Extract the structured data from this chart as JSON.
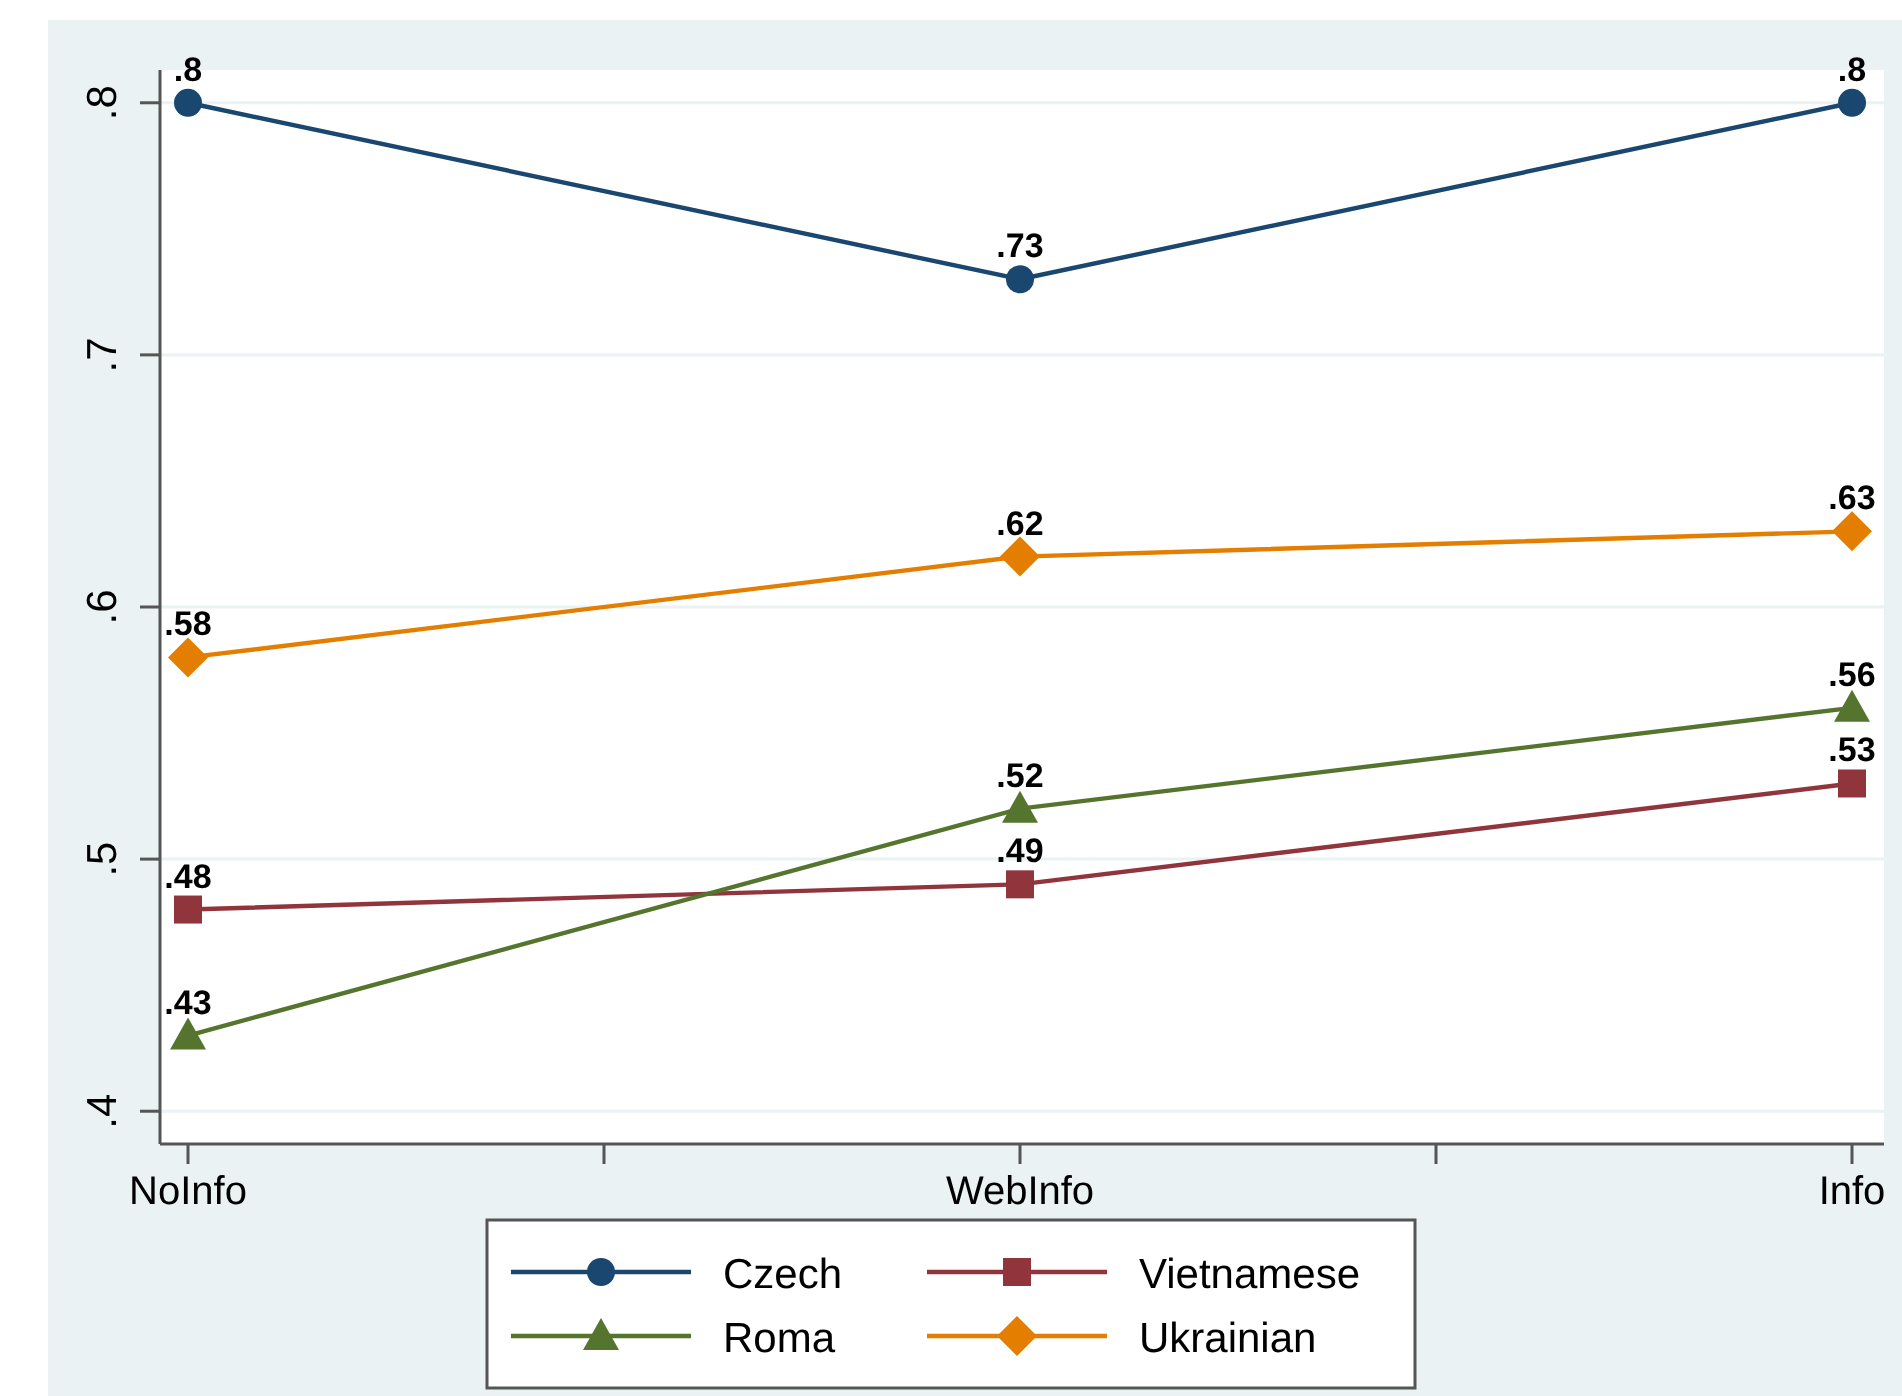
{
  "chart_data": {
    "type": "line",
    "categories": [
      "NoInfo",
      "WebInfo",
      "Info"
    ],
    "ylim": [
      0.387,
      0.813
    ],
    "yticks": [
      {
        "value": 0.4,
        "label": ".4"
      },
      {
        "value": 0.5,
        "label": ".5"
      },
      {
        "value": 0.6,
        "label": ".6"
      },
      {
        "value": 0.7,
        "label": ".7"
      },
      {
        "value": 0.8,
        "label": ".8"
      }
    ],
    "grid": "y",
    "legend": "bottom",
    "series": [
      {
        "name": "Czech",
        "color": "#1a476f",
        "marker": "circle",
        "values": [
          0.8,
          0.73,
          0.8
        ],
        "value_labels": [
          ".8",
          ".73",
          ".8"
        ]
      },
      {
        "name": "Vietnamese",
        "color": "#90353b",
        "marker": "square",
        "values": [
          0.48,
          0.49,
          0.53
        ],
        "value_labels": [
          ".48",
          ".49",
          ".53"
        ]
      },
      {
        "name": "Roma",
        "color": "#55752f",
        "marker": "triangle",
        "values": [
          0.43,
          0.52,
          0.56
        ],
        "value_labels": [
          ".43",
          ".52",
          ".56"
        ]
      },
      {
        "name": "Ukrainian",
        "color": "#e37e00",
        "marker": "diamond",
        "values": [
          0.58,
          0.62,
          0.63
        ],
        "value_labels": [
          ".58",
          ".62",
          ".63"
        ]
      }
    ]
  }
}
